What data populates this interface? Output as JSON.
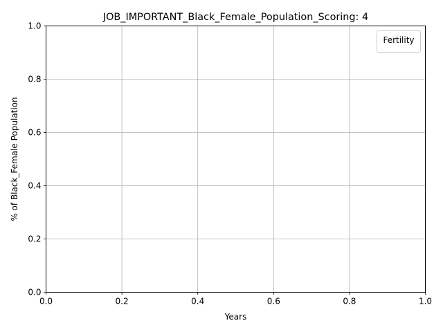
{
  "chart_data": {
    "type": "line",
    "title": "JOB_IMPORTANT_Black_Female_Population_Scoring: 4",
    "xlabel": "Years",
    "ylabel": "% of Black_Female Population",
    "xlim": [
      0.0,
      1.0
    ],
    "ylim": [
      0.0,
      1.0
    ],
    "xticks": [
      "0.0",
      "0.2",
      "0.4",
      "0.6",
      "0.8",
      "1.0"
    ],
    "yticks": [
      "0.0",
      "0.2",
      "0.4",
      "0.6",
      "0.8",
      "1.0"
    ],
    "grid": true,
    "legend": {
      "title": "Fertility",
      "placement": "top-right",
      "entries": []
    },
    "series": [],
    "colors": {
      "axes": "#000000",
      "grid": "#b0b0b0",
      "legend_border": "#cccccc",
      "background": "#ffffff"
    }
  }
}
